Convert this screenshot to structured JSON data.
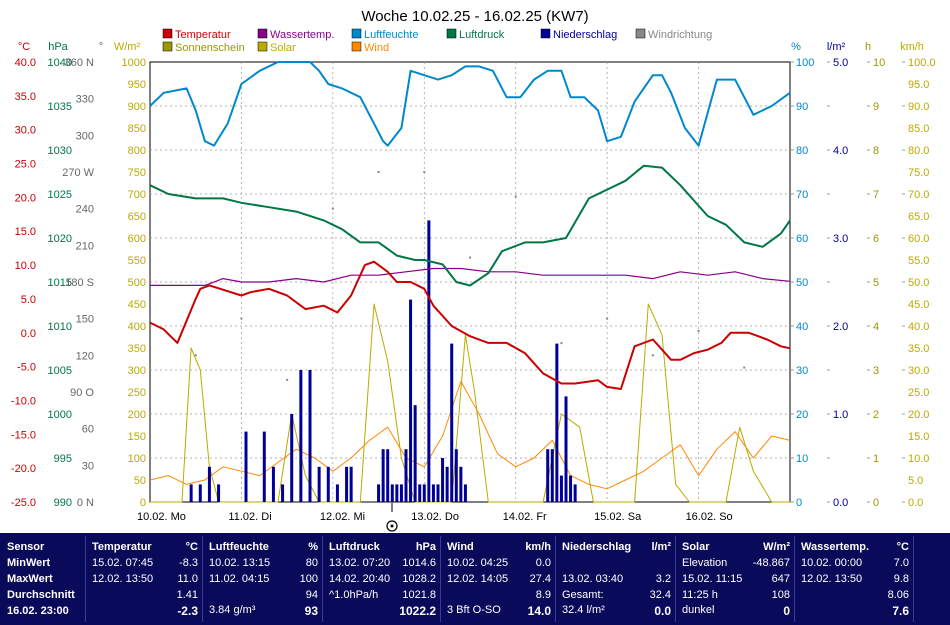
{
  "title": "Woche 10.02.25 - 16.02.25 (KW7)",
  "legend": [
    {
      "label": "Temperatur",
      "color": "#cc0000"
    },
    {
      "label": "Wassertemp.",
      "color": "#880088"
    },
    {
      "label": "Luftfeuchte",
      "color": "#0088cc"
    },
    {
      "label": "Luftdruck",
      "color": "#007744"
    },
    {
      "label": "Niederschlag",
      "color": "#000099"
    },
    {
      "label": "Windrichtung",
      "color": "#888888"
    },
    {
      "label": "Sonnenschein",
      "color": "#999900"
    },
    {
      "label": "Solar",
      "color": "#bbaa00"
    },
    {
      "label": "Wind",
      "color": "#ff8800"
    }
  ],
  "axes": {
    "temp": {
      "unit": "°C",
      "color": "#cc0000",
      "ticks": [
        "40.0",
        "35.0",
        "30.0",
        "25.0",
        "20.0",
        "15.0",
        "10.0",
        "5.0",
        "0.0",
        "-5.0",
        "-10.0",
        "-15.0",
        "-20.0",
        "-25.0"
      ]
    },
    "pressure": {
      "unit": "hPa",
      "color": "#007744",
      "ticks": [
        "1040",
        "1035",
        "1030",
        "1025",
        "1020",
        "1015",
        "1010",
        "1005",
        "1000",
        "995",
        "990"
      ]
    },
    "dir": {
      "unit": "°",
      "color": "#666666",
      "ticks": [
        "360 N",
        "330",
        "300",
        "270 W",
        "240",
        "210",
        "180 S",
        "150",
        "120",
        "90 O",
        "60",
        "30",
        "0 N"
      ]
    },
    "solar": {
      "unit": "W/m²",
      "color": "#bbaa00",
      "ticks": [
        "1000",
        "950",
        "900",
        "850",
        "800",
        "750",
        "700",
        "650",
        "600",
        "550",
        "500",
        "450",
        "400",
        "350",
        "300",
        "250",
        "200",
        "150",
        "100",
        "50",
        "0"
      ]
    },
    "humidity": {
      "unit": "%",
      "color": "#0088cc",
      "ticks": [
        "100",
        "90",
        "80",
        "70",
        "60",
        "50",
        "40",
        "30",
        "20",
        "10",
        "0"
      ]
    },
    "rain": {
      "unit": "l/m²",
      "color": "#000099",
      "ticks": [
        "5.0",
        "4.0",
        "3.0",
        "2.0",
        "1.0",
        "0.0"
      ]
    },
    "sun": {
      "unit": "h",
      "color": "#999900",
      "ticks": [
        "10",
        "9",
        "8",
        "7",
        "6",
        "5",
        "4",
        "3",
        "2",
        "1",
        "0"
      ]
    },
    "wind": {
      "unit": "km/h",
      "color": "#bbaa00",
      "ticks": [
        "100.0",
        "95.0",
        "90.0",
        "85.0",
        "80.0",
        "75.0",
        "70.0",
        "65.0",
        "60.0",
        "55.0",
        "50.0",
        "45.0",
        "40.0",
        "35.0",
        "30.0",
        "25.0",
        "20.0",
        "15.0",
        "10.0",
        "5.0",
        "0.0"
      ]
    }
  },
  "chart_data": {
    "type": "line",
    "title": "Woche 10.02.25 - 16.02.25 (KW7)",
    "x_tick_labels": [
      "10.02. Mo",
      "11.02. Di",
      "12.02. Mi",
      "13.02. Do",
      "14.02. Fr",
      "15.02. Sa",
      "16.02. So"
    ],
    "x_range_days": [
      0,
      7
    ],
    "grid": true,
    "series": [
      {
        "name": "Temperatur",
        "unit": "°C",
        "x": [
          0,
          0.15,
          0.3,
          0.5,
          0.55,
          0.65,
          1.0,
          1.1,
          1.3,
          1.5,
          1.7,
          1.9,
          2.05,
          2.2,
          2.35,
          2.45,
          2.6,
          2.7,
          2.85,
          3.0,
          3.1,
          3.3,
          3.5,
          3.7,
          3.9,
          4.1,
          4.3,
          4.5,
          4.65,
          4.9,
          5.0,
          5.15,
          5.3,
          5.5,
          5.7,
          5.8,
          5.95,
          6.1,
          6.25,
          6.35,
          6.55,
          6.75,
          6.9,
          7.0
        ],
        "y": [
          1.5,
          0.5,
          -1.5,
          5.0,
          6.5,
          7.0,
          5.5,
          6.0,
          6.5,
          5.5,
          3.5,
          4.0,
          3.0,
          5.5,
          10.0,
          10.5,
          9.0,
          7.5,
          7.5,
          6.5,
          4.0,
          1.0,
          -0.5,
          -1.5,
          -1.5,
          -3.0,
          -6.0,
          -7.5,
          -7.5,
          -7.0,
          -8.0,
          -8.3,
          -2.0,
          -1.0,
          -4.0,
          -4.0,
          -3.0,
          -2.5,
          -1.5,
          0.0,
          0.0,
          -1.0,
          -2.0,
          -2.3
        ]
      },
      {
        "name": "Wassertemp.",
        "unit": "°C",
        "x": [
          0,
          0.3,
          0.6,
          0.8,
          1.0,
          1.3,
          1.6,
          1.9,
          2.2,
          2.5,
          2.8,
          3.1,
          3.4,
          3.7,
          4.0,
          4.3,
          4.6,
          4.9,
          5.2,
          5.5,
          5.8,
          6.1,
          6.4,
          6.7,
          7.0
        ],
        "y": [
          7.0,
          7.0,
          7.0,
          8.0,
          7.5,
          7.5,
          8.0,
          7.5,
          8.5,
          8.5,
          9.0,
          9.5,
          9.5,
          9.0,
          9.0,
          8.5,
          8.5,
          8.5,
          8.5,
          8.0,
          9.0,
          8.5,
          9.0,
          8.0,
          7.6
        ]
      },
      {
        "name": "Luftfeuchte",
        "unit": "%",
        "x": [
          0,
          0.15,
          0.4,
          0.5,
          0.6,
          0.7,
          0.85,
          1.0,
          1.2,
          1.4,
          1.6,
          1.75,
          1.85,
          1.95,
          2.1,
          2.3,
          2.5,
          2.55,
          2.6,
          2.75,
          2.85,
          3.0,
          3.15,
          3.3,
          3.45,
          3.6,
          3.75,
          3.9,
          4.05,
          4.2,
          4.35,
          4.5,
          4.6,
          4.75,
          4.9,
          5.0,
          5.15,
          5.3,
          5.5,
          5.6,
          5.7,
          5.85,
          6.0,
          6.2,
          6.4,
          6.6,
          6.8,
          7.0
        ],
        "y": [
          90,
          93,
          94,
          89,
          82,
          81,
          86,
          95,
          98,
          100,
          100,
          100,
          98,
          95,
          94,
          92,
          84,
          82,
          81,
          85,
          98,
          97,
          96,
          97,
          99,
          99,
          98,
          92,
          92,
          96,
          98,
          98,
          92,
          92,
          89,
          82,
          83,
          91,
          97,
          97,
          93,
          85,
          81,
          96,
          96,
          88,
          90,
          93
        ]
      },
      {
        "name": "Luftdruck",
        "unit": "hPa",
        "x": [
          0,
          0.2,
          0.5,
          0.8,
          1.0,
          1.3,
          1.6,
          1.9,
          2.1,
          2.3,
          2.5,
          2.7,
          2.9,
          3.0,
          3.2,
          3.35,
          3.5,
          3.7,
          3.85,
          4.1,
          4.3,
          4.55,
          4.8,
          5.0,
          5.2,
          5.4,
          5.6,
          5.8,
          6.1,
          6.3,
          6.5,
          6.7,
          6.9,
          7.0
        ],
        "y": [
          1026.0,
          1025.0,
          1024.5,
          1024.5,
          1024.0,
          1023.5,
          1023.0,
          1022.0,
          1021.0,
          1019.5,
          1019.5,
          1018.0,
          1017.5,
          1017.5,
          1017.0,
          1015.0,
          1014.6,
          1016.0,
          1018.5,
          1019.5,
          1019.5,
          1020.0,
          1024.5,
          1025.5,
          1026.5,
          1028.2,
          1028.0,
          1026.0,
          1022.5,
          1021.5,
          1019.5,
          1019.0,
          1020.5,
          1022.0
        ]
      },
      {
        "name": "Niederschlag",
        "unit": "l/m²",
        "type": "bar",
        "x": [
          0.45,
          0.55,
          0.65,
          0.75,
          1.05,
          1.25,
          1.35,
          1.45,
          1.55,
          1.65,
          1.75,
          1.85,
          1.95,
          2.05,
          2.15,
          2.2,
          2.5,
          2.55,
          2.6,
          2.65,
          2.7,
          2.75,
          2.8,
          2.85,
          2.9,
          2.95,
          3.0,
          3.05,
          3.1,
          3.15,
          3.2,
          3.25,
          3.3,
          3.35,
          3.4,
          3.45,
          4.35,
          4.4,
          4.45,
          4.5,
          4.55,
          4.6,
          4.65
        ],
        "y": [
          0.2,
          0.2,
          0.4,
          0.2,
          0.8,
          0.8,
          0.4,
          0.2,
          1.0,
          1.5,
          1.5,
          0.4,
          0.4,
          0.2,
          0.4,
          0.4,
          0.2,
          0.6,
          0.6,
          0.2,
          0.2,
          0.2,
          0.6,
          2.3,
          1.1,
          0.2,
          0.2,
          3.2,
          0.2,
          0.2,
          0.5,
          0.4,
          1.8,
          0.6,
          0.4,
          0.2,
          0.6,
          0.6,
          1.8,
          0.3,
          1.2,
          0.3,
          0.2
        ]
      },
      {
        "name": "Solar",
        "unit": "W/m²",
        "x": [
          0,
          0.35,
          0.45,
          0.55,
          0.65,
          0.75,
          1.0,
          1.4,
          1.55,
          1.7,
          1.85,
          2.0,
          2.3,
          2.45,
          2.6,
          2.75,
          2.9,
          3.0,
          3.3,
          3.45,
          3.55,
          3.7,
          3.85,
          4.0,
          4.3,
          4.5,
          4.7,
          4.85,
          5.0,
          5.3,
          5.45,
          5.6,
          5.75,
          5.9,
          6.0,
          6.3,
          6.45,
          6.6,
          6.8,
          7.0
        ],
        "y": [
          0,
          0,
          350,
          300,
          80,
          0,
          0,
          0,
          200,
          60,
          0,
          0,
          0,
          450,
          320,
          100,
          0,
          0,
          0,
          380,
          250,
          0,
          0,
          0,
          0,
          200,
          170,
          0,
          0,
          0,
          450,
          380,
          40,
          0,
          0,
          0,
          170,
          70,
          0,
          0
        ]
      },
      {
        "name": "Wind",
        "unit": "km/h",
        "x": [
          0,
          0.2,
          0.4,
          0.6,
          0.8,
          1.0,
          1.2,
          1.4,
          1.6,
          1.8,
          2.0,
          2.2,
          2.4,
          2.6,
          2.8,
          3.0,
          3.2,
          3.4,
          3.6,
          3.8,
          4.0,
          4.2,
          4.4,
          4.6,
          4.8,
          5.0,
          5.2,
          5.4,
          5.6,
          5.8,
          6.0,
          6.2,
          6.4,
          6.6,
          6.8,
          7.0
        ],
        "y": [
          5,
          6,
          4,
          5,
          8,
          7,
          6,
          9,
          12,
          10,
          7,
          10,
          14,
          17,
          10,
          8,
          15,
          27.4,
          20,
          11,
          8,
          10,
          14,
          6,
          4,
          3,
          5,
          7,
          10,
          13,
          6,
          12,
          16,
          10,
          15,
          14
        ]
      }
    ],
    "windrichtung_days": [
      0,
      0.5,
      1,
      1.5,
      2,
      2.5,
      3,
      3.5,
      4,
      4.5,
      5,
      5.5,
      6,
      6.5,
      7
    ],
    "windrichtung_deg": [
      150,
      120,
      150,
      100,
      240,
      270,
      270,
      200,
      250,
      130,
      150,
      120,
      140,
      110,
      100
    ]
  },
  "stats": {
    "sensor": {
      "header": "Sensor",
      "rows": [
        "MinWert",
        "MaxWert",
        "Durchschnitt",
        "16.02. 23:00"
      ]
    },
    "temperatur": {
      "header": "Temperatur",
      "unit": "°C",
      "min_time": "15.02. 07:45",
      "min": "-8.3",
      "max_time": "12.02. 13:50",
      "max": "11.0",
      "avg": "1.41",
      "current": "-2.3"
    },
    "luftfeuchte": {
      "header": "Luftfeuchte",
      "unit": "%",
      "min_time": "10.02. 13:15",
      "min": "80",
      "max_time": "11.02. 04:15",
      "max": "100",
      "avg": "94",
      "extra": "3.84 g/m³",
      "current": "93"
    },
    "luftdruck": {
      "header": "Luftdruck",
      "unit": "hPa",
      "min_time": "13.02. 07:20",
      "min": "1014.6",
      "max_time": "14.02. 20:40",
      "max": "1028.2",
      "trend": "^1.0hPa/h",
      "avg": "1021.8",
      "current": "1022.2"
    },
    "wind": {
      "header": "Wind",
      "unit": "km/h",
      "min_time": "10.02. 04:25",
      "min": "0.0",
      "max_time": "12.02. 14:05",
      "max": "27.4",
      "avg": "8.9",
      "extra": "3 Bft O-SO",
      "current": "14.0"
    },
    "niederschlag": {
      "header": "Niederschlag",
      "unit": "l/m²",
      "max_time": "13.02. 03:40",
      "max": "3.2",
      "total_label": "Gesamt:",
      "total": "32.4",
      "extra": "32.4 l/m²",
      "current": "0.0"
    },
    "solar": {
      "header": "Solar",
      "unit": "W/m²",
      "elev_label": "Elevation",
      "elev": "-48.867",
      "max_time": "15.02. 11:15",
      "max": "647",
      "sun_time": "11:25 h",
      "sun_val": "108",
      "state": "dunkel",
      "current": "0"
    },
    "wassertemp": {
      "header": "Wassertemp.",
      "unit": "°C",
      "min_time": "10.02. 00:00",
      "min": "7.0",
      "max_time": "12.02. 13:50",
      "max": "9.8",
      "avg": "8.06",
      "current": "7.6"
    }
  }
}
